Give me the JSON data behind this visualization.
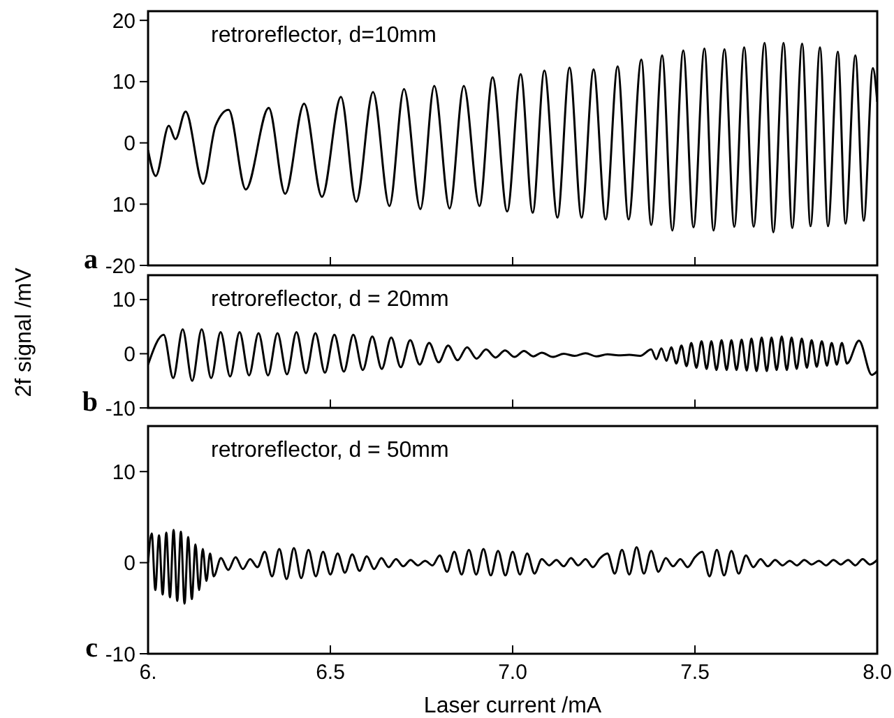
{
  "chart_data": [
    {
      "type": "line",
      "title": "retroreflector, d=10mm",
      "annotations": [
        "a"
      ],
      "xlim": [
        6,
        8
      ],
      "xticks": [
        {
          "value": 6,
          "label": null
        },
        {
          "value": 6.5,
          "label": null
        },
        {
          "value": 7,
          "label": null
        },
        {
          "value": 7.5,
          "label": null
        },
        {
          "value": 8,
          "label": null
        }
      ],
      "ylim": [
        -20,
        21.5
      ],
      "yticks": [
        20,
        10,
        0,
        {
          "value": -10,
          "label": "10"
        },
        -20
      ],
      "tick_labels": "y",
      "x": [
        6.0,
        6.021,
        6.057,
        6.075,
        6.103,
        6.151,
        6.185,
        6.221,
        6.268,
        6.331,
        6.376,
        6.428,
        6.477,
        6.529,
        6.571,
        6.617,
        6.662,
        6.702,
        6.747,
        6.785,
        6.827,
        6.866,
        6.909,
        6.945,
        6.985,
        7.022,
        7.055,
        7.087,
        7.123,
        7.156,
        7.189,
        7.222,
        7.255,
        7.288,
        7.318,
        7.353,
        7.38,
        7.41,
        7.438,
        7.468,
        7.496,
        7.526,
        7.551,
        7.581,
        7.608,
        7.635,
        7.661,
        7.691,
        7.715,
        7.743,
        7.767,
        7.794,
        7.817,
        7.843,
        7.865,
        7.892,
        7.913,
        7.94,
        7.963,
        7.988,
        8.0
      ],
      "series": [
        {
          "color": "#000000",
          "values": [
            -1.2,
            -5.4,
            2.8,
            0.6,
            5.1,
            -6.7,
            2.8,
            5.4,
            -7.6,
            5.7,
            -8.3,
            6.4,
            -8.8,
            7.5,
            -9.6,
            8.3,
            -10.3,
            8.8,
            -10.8,
            9.3,
            -10.7,
            9.3,
            -10.3,
            10.7,
            -11.2,
            11.2,
            -11.4,
            11.8,
            -12.2,
            12.3,
            -12.2,
            12,
            -12.5,
            12.5,
            -12.5,
            13.6,
            -13.4,
            14.3,
            -14.3,
            15.1,
            -13.8,
            15.4,
            -14.3,
            15.3,
            -13.7,
            15.6,
            -13.7,
            16.3,
            -14.6,
            16.3,
            -13.9,
            16.2,
            -13.6,
            15.6,
            -13.6,
            14.9,
            -13.2,
            14.3,
            -12.7,
            12.2,
            6.7
          ]
        }
      ]
    },
    {
      "type": "line",
      "title": "retroreflector, d = 20mm",
      "ylabel": "2f signal /mV",
      "annotations": [
        "b"
      ],
      "xlim": [
        6,
        8
      ],
      "xticks": [
        {
          "value": 6,
          "label": null
        },
        {
          "value": 6.5,
          "label": null
        },
        {
          "value": 7,
          "label": null
        },
        {
          "value": 7.5,
          "label": null
        },
        {
          "value": 8,
          "label": null
        }
      ],
      "ylim": [
        -10,
        14.5
      ],
      "yticks": [
        10,
        0,
        -10
      ],
      "tick_labels": "y",
      "x": [
        6.0,
        6.043,
        6.069,
        6.095,
        6.121,
        6.147,
        6.173,
        6.199,
        6.225,
        6.251,
        6.277,
        6.303,
        6.329,
        6.355,
        6.381,
        6.407,
        6.433,
        6.459,
        6.485,
        6.511,
        6.537,
        6.563,
        6.589,
        6.615,
        6.641,
        6.667,
        6.693,
        6.719,
        6.745,
        6.771,
        6.797,
        6.823,
        6.849,
        6.875,
        6.901,
        6.927,
        6.953,
        6.979,
        7.005,
        7.031,
        7.057,
        7.08,
        7.11,
        7.14,
        7.17,
        7.2,
        7.23,
        7.26,
        7.29,
        7.32,
        7.35,
        7.38,
        7.394,
        7.408,
        7.422,
        7.435,
        7.449,
        7.463,
        7.477,
        7.49,
        7.504,
        7.518,
        7.532,
        7.545,
        7.559,
        7.573,
        7.587,
        7.6,
        7.614,
        7.628,
        7.642,
        7.655,
        7.669,
        7.683,
        7.697,
        7.71,
        7.724,
        7.738,
        7.752,
        7.765,
        7.779,
        7.793,
        7.807,
        7.82,
        7.834,
        7.848,
        7.862,
        7.875,
        7.889,
        7.903,
        7.917,
        7.95,
        7.985,
        8.0
      ],
      "series": [
        {
          "color": "#000000",
          "values": [
            -2,
            3.5,
            -4.5,
            4.5,
            -5,
            4.5,
            -4.5,
            4,
            -4.2,
            4,
            -4,
            3.8,
            -4,
            3.8,
            -3.8,
            4,
            -3.6,
            3.8,
            -3.5,
            3.5,
            -3.3,
            3.5,
            -3,
            3.2,
            -2.8,
            3,
            -2.5,
            2.5,
            -2,
            2,
            -1.6,
            1.5,
            -1.2,
            1.2,
            -0.9,
            0.8,
            -0.7,
            0.6,
            -0.6,
            0.5,
            -0.5,
            0.2,
            -0.6,
            0,
            -0.4,
            0.1,
            -0.5,
            -0.1,
            -0.3,
            -0.2,
            -0.4,
            0.8,
            -1,
            1,
            -1.3,
            1.2,
            -1.8,
            1.5,
            -2.3,
            2,
            -2.6,
            2.3,
            -2.8,
            2.3,
            -3,
            2.5,
            -3,
            2.5,
            -3,
            2.6,
            -3.1,
            2.8,
            -3.2,
            3,
            -3.2,
            3,
            -3,
            3.2,
            -3,
            3,
            -2.8,
            2.8,
            -2.6,
            2.5,
            -2.4,
            2.3,
            -2.2,
            2,
            -2,
            2,
            -1.8,
            2.4,
            -3.9,
            -3.2
          ]
        }
      ]
    },
    {
      "type": "line",
      "title": "retroreflector, d = 50mm",
      "xlabel": "Laser current /mA",
      "annotations": [
        "c"
      ],
      "xlim": [
        6,
        8
      ],
      "xticks": [
        {
          "value": 6,
          "label": "6."
        },
        6.5,
        {
          "value": 7,
          "label": "7.0"
        },
        7.5,
        {
          "value": 8,
          "label": "8.0"
        }
      ],
      "ylim": [
        -10,
        15
      ],
      "yticks": [
        10,
        0,
        -10
      ],
      "x": [
        6.0,
        6.01,
        6.02,
        6.03,
        6.04,
        6.05,
        6.06,
        6.07,
        6.08,
        6.09,
        6.1,
        6.11,
        6.12,
        6.13,
        6.14,
        6.15,
        6.16,
        6.17,
        6.18,
        6.2,
        6.22,
        6.24,
        6.26,
        6.28,
        6.3,
        6.32,
        6.34,
        6.36,
        6.38,
        6.4,
        6.42,
        6.44,
        6.46,
        6.48,
        6.5,
        6.52,
        6.54,
        6.56,
        6.58,
        6.6,
        6.62,
        6.64,
        6.66,
        6.68,
        6.7,
        6.72,
        6.74,
        6.76,
        6.78,
        6.8,
        6.82,
        6.84,
        6.86,
        6.88,
        6.9,
        6.92,
        6.94,
        6.96,
        6.98,
        7.0,
        7.02,
        7.04,
        7.06,
        7.08,
        7.1,
        7.12,
        7.14,
        7.16,
        7.18,
        7.2,
        7.22,
        7.24,
        7.26,
        7.28,
        7.3,
        7.32,
        7.34,
        7.36,
        7.38,
        7.4,
        7.42,
        7.44,
        7.46,
        7.48,
        7.5,
        7.52,
        7.54,
        7.56,
        7.58,
        7.6,
        7.62,
        7.64,
        7.66,
        7.68,
        7.7,
        7.72,
        7.74,
        7.76,
        7.78,
        7.8,
        7.82,
        7.84,
        7.86,
        7.88,
        7.9,
        7.92,
        7.94,
        7.96,
        7.98,
        8.0
      ],
      "series": [
        {
          "color": "#000000",
          "values": [
            0,
            3.2,
            -3,
            3,
            -3.5,
            3.3,
            -3.8,
            3.6,
            -4.2,
            3.4,
            -4.5,
            2.8,
            -4,
            2,
            -3,
            1.5,
            -2,
            1,
            -1.5,
            0.5,
            -0.8,
            0.6,
            -0.7,
            0.4,
            -0.5,
            1.2,
            -1.5,
            1.5,
            -1.8,
            1.6,
            -1.7,
            1.4,
            -1.5,
            1.2,
            -1.3,
            1,
            -1.1,
            0.9,
            -0.9,
            0.7,
            -0.7,
            0.5,
            -0.5,
            0.4,
            -0.4,
            0.3,
            -0.3,
            0.2,
            -0.3,
            0.8,
            -1,
            1.2,
            -1.3,
            1.4,
            -1.3,
            1.5,
            -1.4,
            1.3,
            -1.4,
            1.2,
            -1.3,
            1,
            -1.2,
            0.4,
            -0.3,
            0.3,
            -0.4,
            0.5,
            -0.3,
            0.4,
            -0.5,
            0.5,
            1,
            -1.2,
            1.4,
            -1.3,
            1.7,
            -1.2,
            1.3,
            -1,
            0.5,
            -0.4,
            0.4,
            -0.5,
            0.6,
            1.2,
            -1.5,
            1.4,
            -1.4,
            1.3,
            -1.2,
            0.8,
            -0.5,
            0.4,
            -0.4,
            0.3,
            -0.3,
            0.2,
            -0.3,
            0.3,
            -0.2,
            0.2,
            -0.3,
            0.3,
            -0.2,
            0.3,
            -0.3,
            0.4,
            -0.2,
            0.3
          ]
        }
      ]
    }
  ]
}
